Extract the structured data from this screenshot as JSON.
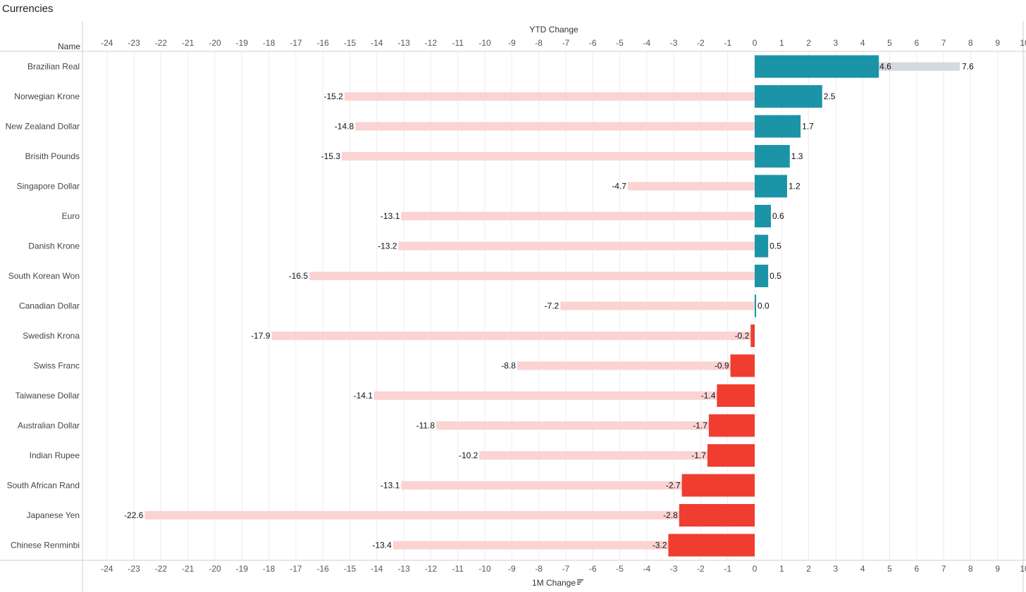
{
  "page": {
    "title": "Currencies"
  },
  "chart_data": {
    "type": "bar",
    "title": "Currencies",
    "row_header": "Name",
    "x_top_label": "YTD Change",
    "x_bottom_label": "1M Change",
    "sort_icon": "sort-descending-icon",
    "xlim": [
      -24,
      10
    ],
    "ticks": [
      -24,
      -23,
      -22,
      -21,
      -20,
      -19,
      -18,
      -17,
      -16,
      -15,
      -14,
      -13,
      -12,
      -11,
      -10,
      -9,
      -8,
      -7,
      -6,
      -5,
      -4,
      -3,
      -2,
      -1,
      0,
      1,
      2,
      3,
      4,
      5,
      6,
      7,
      8,
      9,
      10
    ],
    "grid": true,
    "categories": [
      "Brazilian Real",
      "Norwegian Krone",
      "New Zealand Dollar",
      "Brisith Pounds",
      "Singapore Dollar",
      "Euro",
      "Danish Krone",
      "South Korean Won",
      "Canadian Dollar",
      "Swedish Krona",
      "Swiss Franc",
      "Taiwanese Dollar",
      "Australian Dollar",
      "Indian Rupee",
      "South African Rand",
      "Japanese Yen",
      "Chinese Renminbi"
    ],
    "series": [
      {
        "name": "YTD Change",
        "values": [
          7.6,
          -15.2,
          -14.8,
          -15.3,
          -4.7,
          -13.1,
          -13.2,
          -16.5,
          -7.2,
          -17.9,
          -8.8,
          -14.1,
          -11.8,
          -10.2,
          -13.1,
          -22.6,
          -13.4
        ],
        "labels": [
          "7.6",
          "-15.2",
          "-14.8",
          "-15.3",
          "-4.7",
          "-13.1",
          "-13.2",
          "-16.5",
          "-7.2",
          "-17.9",
          "-8.8",
          "-14.1",
          "-11.8",
          "-10.2",
          "-13.1",
          "-22.6",
          "-13.4"
        ]
      },
      {
        "name": "1M Change",
        "values": [
          4.6,
          2.5,
          1.7,
          1.3,
          1.2,
          0.6,
          0.5,
          0.5,
          0.04,
          -0.15,
          -0.9,
          -1.4,
          -1.7,
          -1.75,
          -2.7,
          -2.8,
          -3.2
        ],
        "labels": [
          "4.6",
          "2.5",
          "1.7",
          "1.3",
          "1.2",
          "0.6",
          "0.5",
          "0.5",
          "0.0",
          "-0.2",
          "-0.9",
          "-1.4",
          "-1.7",
          "-1.7",
          "-2.7",
          "-2.8",
          "-3.2"
        ]
      }
    ],
    "colors": {
      "positive": "#1b94a8",
      "negative": "#ef3d2f",
      "ytd_negative": "#fbd3d3",
      "ytd_positive": "#d6d9e4",
      "grid": "#ececec",
      "axis": "#cfcfcf"
    }
  }
}
